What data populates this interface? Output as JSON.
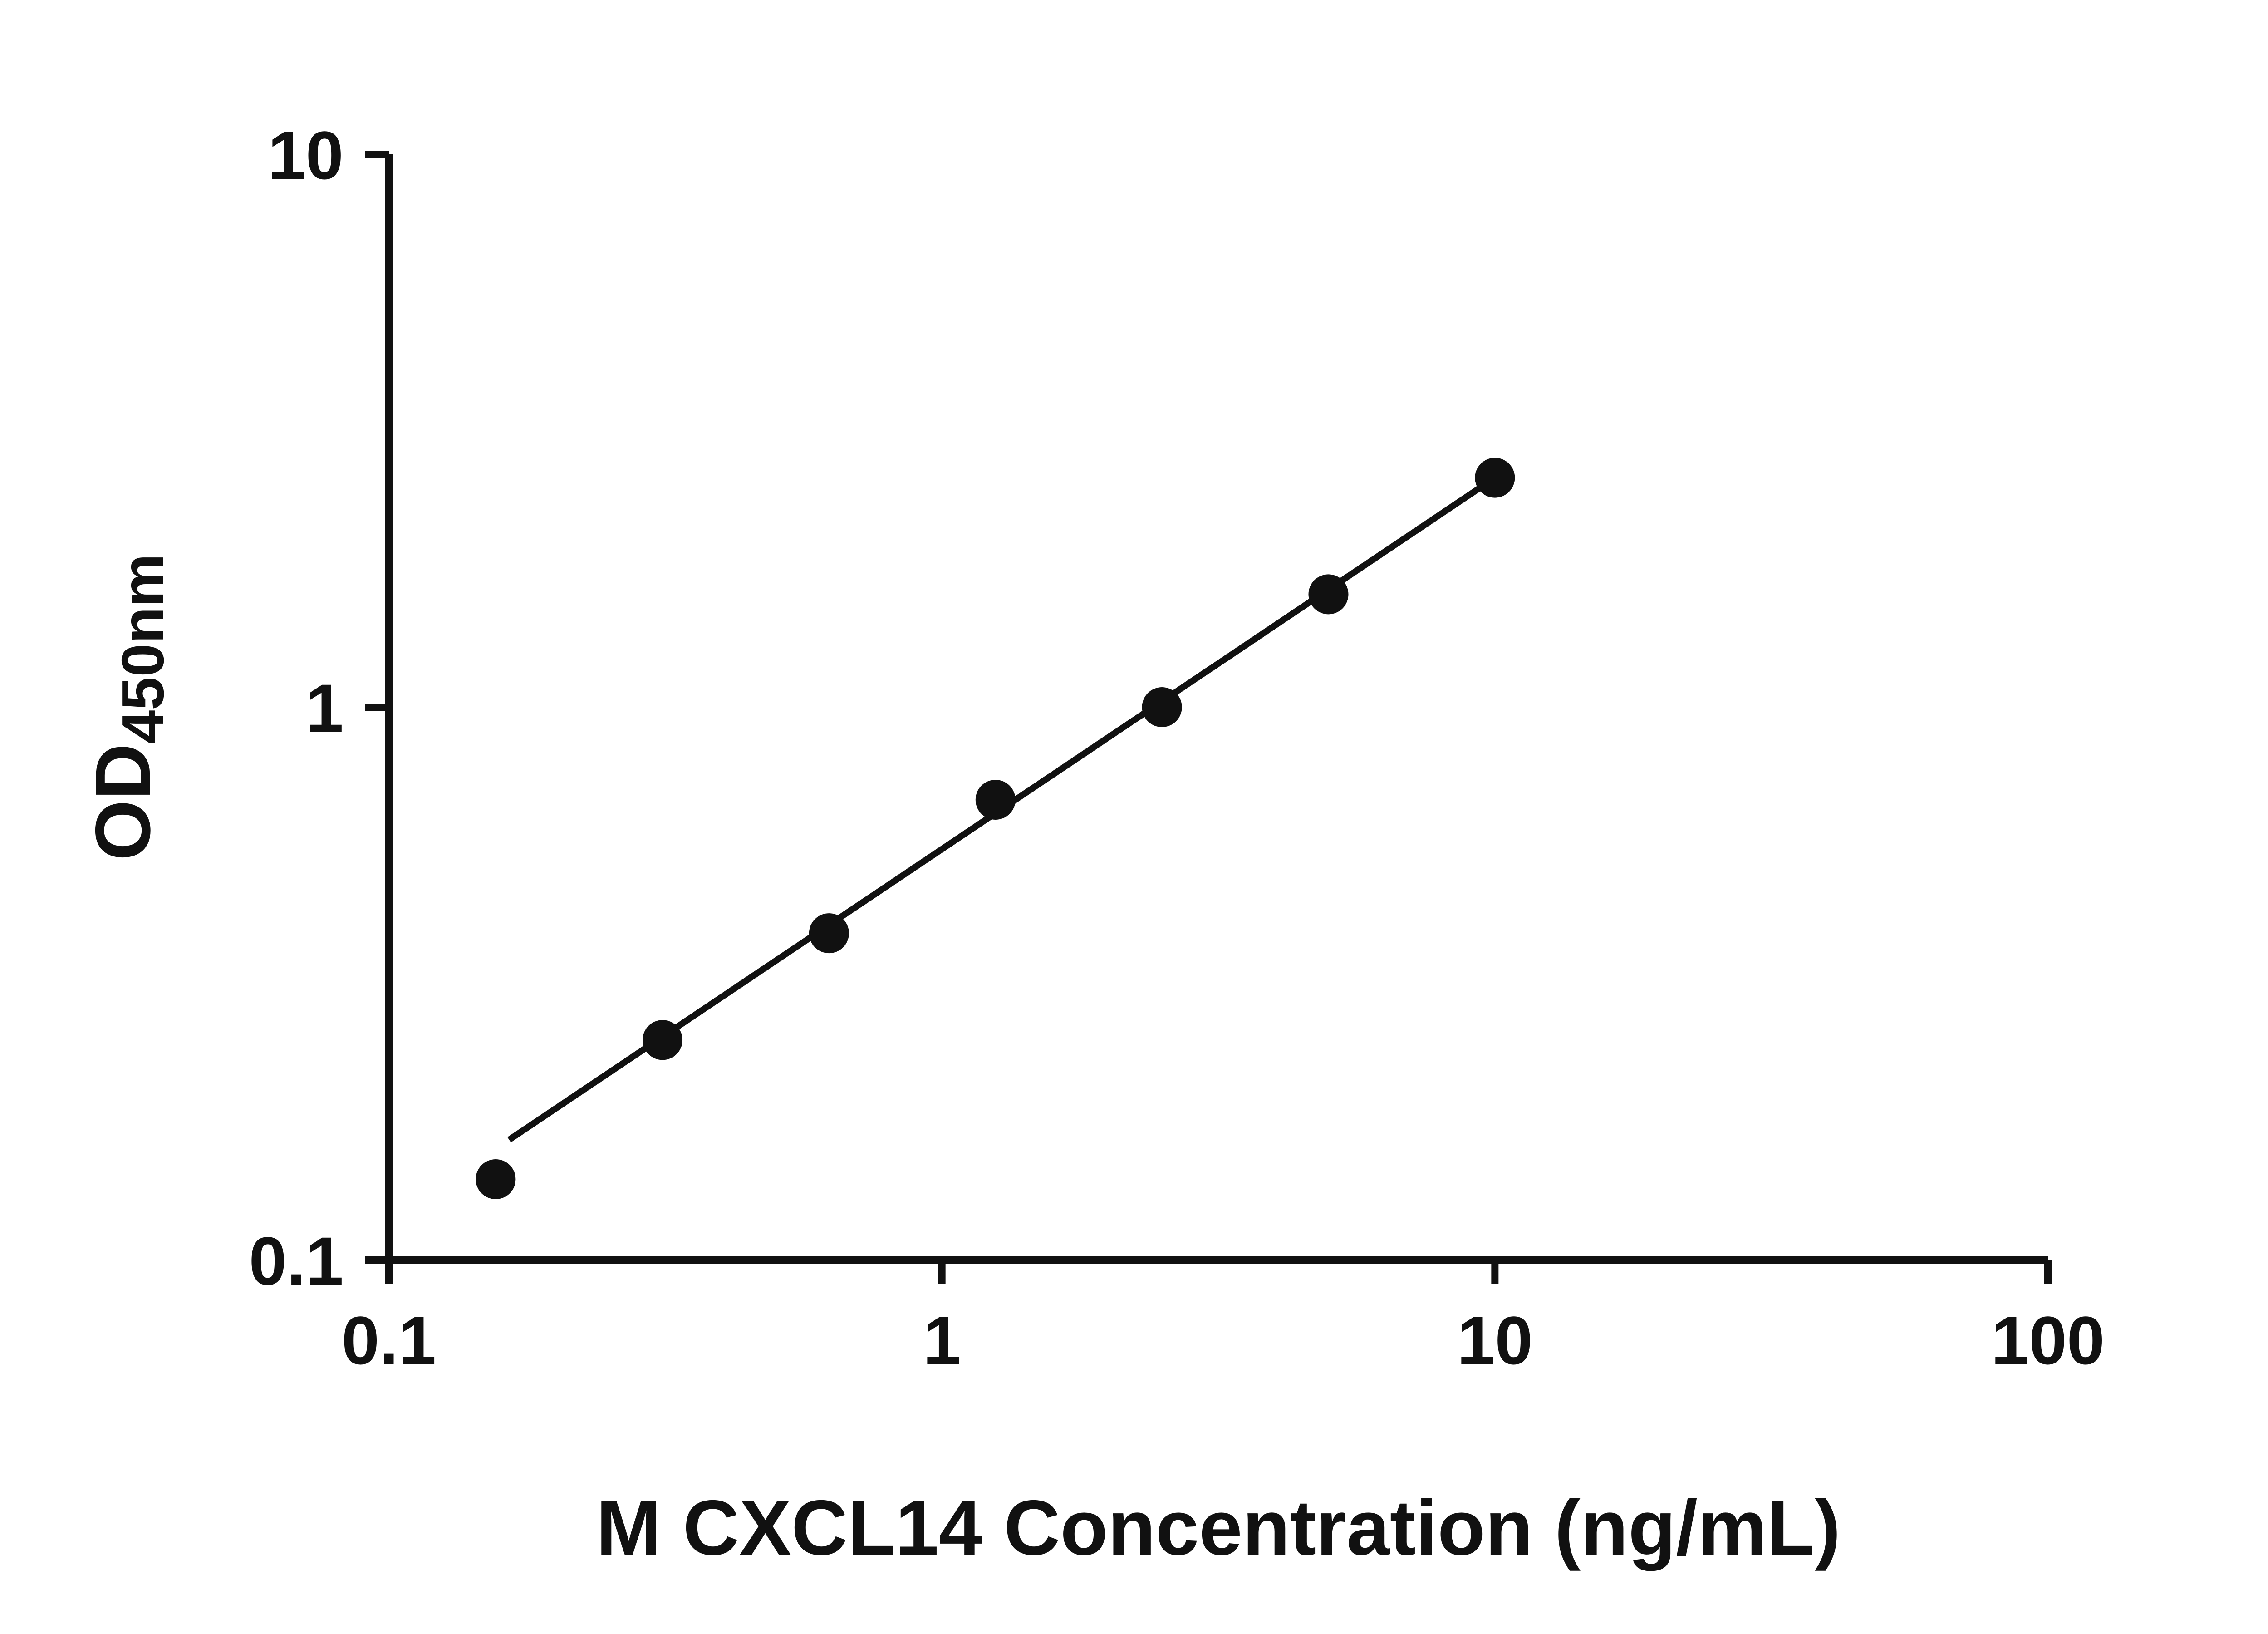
{
  "chart_data": {
    "type": "scatter",
    "title": "",
    "xlabel": "M CXCL14 Concentration (ng/mL)",
    "ylabel_main": "OD",
    "ylabel_sub": "450nm",
    "x_scale": "log",
    "y_scale": "log",
    "xlim": [
      0.1,
      100
    ],
    "ylim": [
      0.1,
      10
    ],
    "x_ticks": [
      0.1,
      1,
      10,
      100
    ],
    "x_tick_labels": [
      "0.1",
      "1",
      "10",
      "100"
    ],
    "y_ticks": [
      0.1,
      1,
      10
    ],
    "y_tick_labels": [
      "0.1",
      "1",
      "10"
    ],
    "grid": false,
    "legend": "none",
    "series": [
      {
        "name": "standard-curve-points",
        "x": [
          0.156,
          0.3125,
          0.625,
          1.25,
          2.5,
          5,
          10
        ],
        "y": [
          0.14,
          0.25,
          0.39,
          0.68,
          1.0,
          1.6,
          2.6
        ]
      }
    ],
    "trend_line": {
      "x": [
        0.165,
        10
      ],
      "y": [
        0.165,
        2.6
      ]
    },
    "ink": "#111111",
    "background": "#ffffff"
  }
}
